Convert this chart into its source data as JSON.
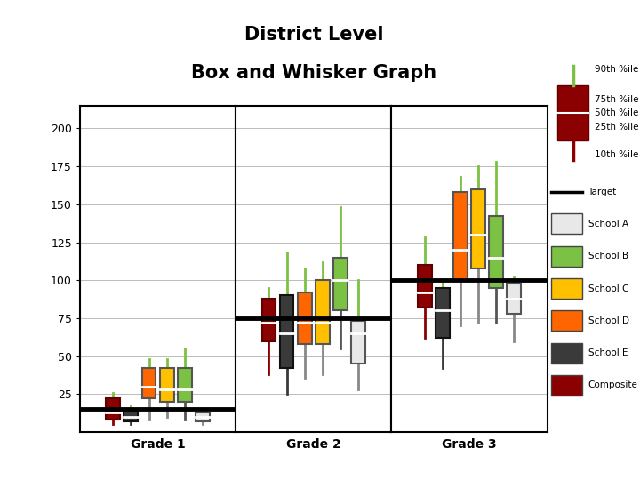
{
  "title_line1": "District Level",
  "title_line2": "Box and Whisker Graph",
  "grades": [
    "Grade 1",
    "Grade 2",
    "Grade 3"
  ],
  "target_lines": [
    15,
    75,
    100
  ],
  "ylim": [
    0,
    215
  ],
  "yticks": [
    25,
    50,
    75,
    100,
    125,
    150,
    175,
    200
  ],
  "schools": [
    "Composite",
    "School E",
    "School D",
    "School C",
    "School B",
    "School A"
  ],
  "school_colors": {
    "Composite": "#8B0000",
    "School A": "#E8E8E8",
    "School B": "#7BC143",
    "School C": "#FFC000",
    "School D": "#FF6600",
    "School E": "#3A3A3A"
  },
  "school_edge_colors": {
    "Composite": "#600000",
    "School A": "#555555",
    "School B": "#555555",
    "School C": "#555555",
    "School D": "#555555",
    "School E": "#111111"
  },
  "top_whisker_color": "#7BC143",
  "bottom_whisker_colors": {
    "Composite": "#8B0000",
    "School A": "#888888",
    "School B": "#555555",
    "School C": "#888888",
    "School D": "#888888",
    "School E": "#3A3A3A"
  },
  "data": {
    "Grade 1": {
      "Composite": {
        "p10": 5,
        "p25": 8,
        "p50": 13,
        "p75": 22,
        "p90": 26
      },
      "School A": {
        "p10": 5,
        "p25": 7,
        "p50": 10,
        "p75": 13,
        "p90": 15
      },
      "School B": {
        "p10": 8,
        "p25": 20,
        "p50": 28,
        "p75": 42,
        "p90": 55
      },
      "School C": {
        "p10": 10,
        "p25": 20,
        "p50": 28,
        "p75": 42,
        "p90": 48
      },
      "School D": {
        "p10": 8,
        "p25": 22,
        "p50": 30,
        "p75": 42,
        "p90": 48
      },
      "School E": {
        "p10": 5,
        "p25": 7,
        "p50": 10,
        "p75": 14,
        "p90": 17
      }
    },
    "Grade 2": {
      "Composite": {
        "p10": 38,
        "p25": 60,
        "p50": 72,
        "p75": 88,
        "p90": 95
      },
      "School A": {
        "p10": 28,
        "p25": 45,
        "p50": 65,
        "p75": 73,
        "p90": 100
      },
      "School B": {
        "p10": 55,
        "p25": 80,
        "p50": 100,
        "p75": 115,
        "p90": 148
      },
      "School C": {
        "p10": 38,
        "p25": 58,
        "p50": 72,
        "p75": 100,
        "p90": 112
      },
      "School D": {
        "p10": 36,
        "p25": 58,
        "p50": 72,
        "p75": 92,
        "p90": 108
      },
      "School E": {
        "p10": 25,
        "p25": 42,
        "p50": 65,
        "p75": 90,
        "p90": 118
      }
    },
    "Grade 3": {
      "Composite": {
        "p10": 62,
        "p25": 82,
        "p50": 92,
        "p75": 110,
        "p90": 128
      },
      "School A": {
        "p10": 60,
        "p25": 78,
        "p50": 88,
        "p75": 98,
        "p90": 102
      },
      "School B": {
        "p10": 72,
        "p25": 95,
        "p50": 115,
        "p75": 142,
        "p90": 178
      },
      "School C": {
        "p10": 72,
        "p25": 108,
        "p50": 130,
        "p75": 160,
        "p90": 175
      },
      "School D": {
        "p10": 70,
        "p25": 100,
        "p50": 120,
        "p75": 158,
        "p90": 168
      },
      "School E": {
        "p10": 42,
        "p25": 62,
        "p50": 80,
        "p75": 95,
        "p90": 100
      }
    }
  }
}
